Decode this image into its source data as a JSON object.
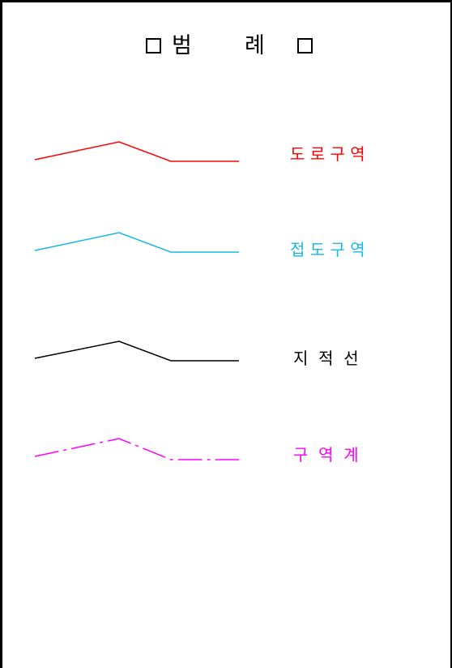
{
  "legend": {
    "title": {
      "left_box_icon": "square-outline-icon",
      "chars": [
        "범",
        "례"
      ],
      "right_box_icon": "square-outline-icon"
    },
    "entries": [
      {
        "label": "도 로 구 역",
        "color": "#ff0000",
        "line_style": "solid"
      },
      {
        "label": "접 도 구 역",
        "color": "#19b6ea",
        "line_style": "solid"
      },
      {
        "label": "지  적  선",
        "color": "#000000",
        "line_style": "solid"
      },
      {
        "label": "구  역  계",
        "color": "#ff00ff",
        "line_style": "dash-dot"
      }
    ]
  }
}
